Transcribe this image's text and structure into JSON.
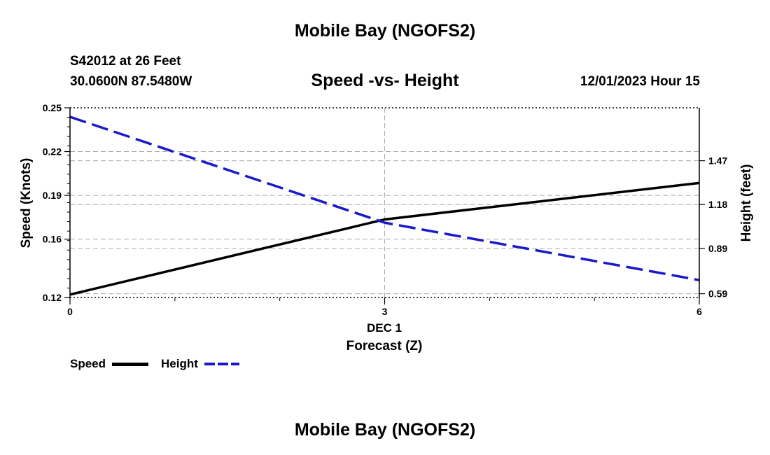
{
  "header": {
    "title": "Mobile Bay (NGOFS2)",
    "station": "S42012 at 26 Feet",
    "coords": "30.0600N  87.5480W",
    "datetime": "12/01/2023 Hour 15"
  },
  "footer": {
    "title": "Mobile Bay (NGOFS2)"
  },
  "chart_data": {
    "type": "line",
    "title": "Speed -vs- Height",
    "xlabel": "Forecast (Z)",
    "xlabel_date": "DEC 1",
    "ylabel_left": "Speed (Knots)",
    "ylabel_right": "Height (feet)",
    "x": [
      0,
      3,
      6
    ],
    "x_ticks": [
      "0",
      "3",
      "6"
    ],
    "xlim": [
      0,
      6
    ],
    "ylim_left": [
      0.12,
      0.25
    ],
    "ylim_right": [
      0.565,
      1.82
    ],
    "y_ticks_left": [
      "0.25",
      "0.22",
      "0.19",
      "0.16",
      "0.12"
    ],
    "y_tick_values_left": [
      0.25,
      0.22,
      0.19,
      0.16,
      0.12
    ],
    "y_ticks_right": [
      "1.47",
      "1.18",
      "0.89",
      "0.59"
    ],
    "y_tick_values_right": [
      1.47,
      1.18,
      0.89,
      0.59
    ],
    "grid": true,
    "series": [
      {
        "name": "Speed",
        "axis": "left",
        "color": "#000000",
        "style": "solid",
        "values": [
          0.122,
          0.1735,
          0.1985
        ]
      },
      {
        "name": "Height",
        "axis": "right",
        "color": "#1a1acc",
        "style": "dashed",
        "values": [
          1.76,
          1.06,
          0.68
        ]
      }
    ],
    "legend": [
      "Speed",
      "Height"
    ]
  }
}
